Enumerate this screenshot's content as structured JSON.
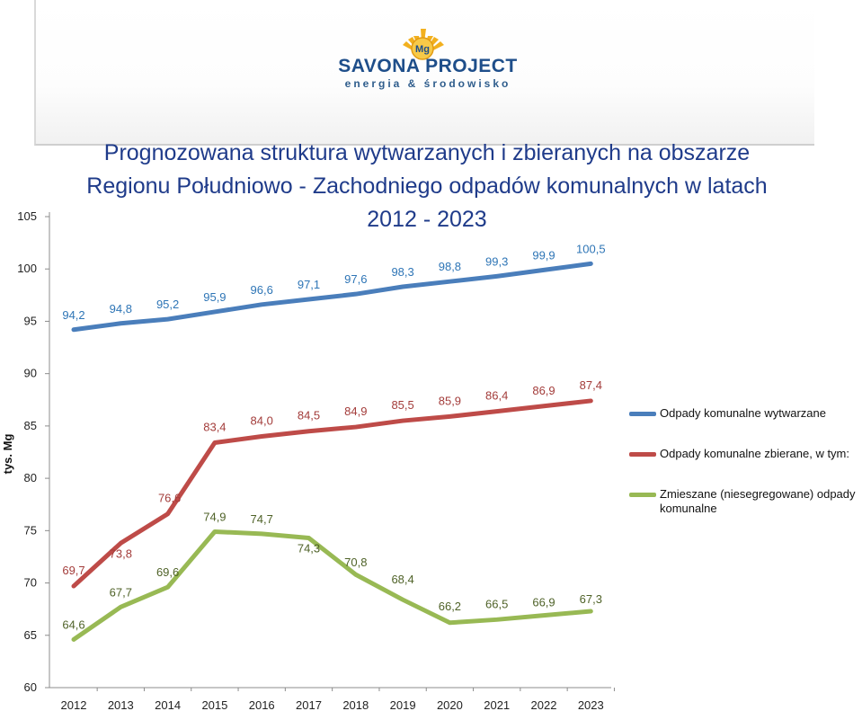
{
  "logo": {
    "brand": "SAVONA PROJECT",
    "tagline": "energia & środowisko",
    "mark_text": "Mg"
  },
  "chart_data": {
    "type": "line",
    "title": "Prognozowana struktura wytwarzanych i zbieranych na obszarze Regionu Południowo - Zachodniego odpadów komunalnych w latach 2012 - 2023",
    "title_lines": [
      "Prognozowana struktura wytwarzanych i zbieranych na obszarze",
      "Regionu Południowo - Zachodniego odpadów komunalnych w latach",
      "2012 - 2023"
    ],
    "xlabel": "",
    "ylabel": "tys. Mg",
    "categories": [
      "2012",
      "2013",
      "2014",
      "2015",
      "2016",
      "2017",
      "2018",
      "2019",
      "2020",
      "2021",
      "2022",
      "2023"
    ],
    "ylim": [
      60,
      105
    ],
    "yticks": [
      60,
      65,
      70,
      75,
      80,
      85,
      90,
      95,
      100,
      105
    ],
    "grid": false,
    "legend": "right",
    "series": [
      {
        "name": "Odpady komunalne wytwarzane",
        "color": "#4a7ebb",
        "label_color": "#2e75b6",
        "values": [
          94.2,
          94.8,
          95.2,
          95.9,
          96.6,
          97.1,
          97.6,
          98.3,
          98.8,
          99.3,
          99.9,
          100.5
        ],
        "labels": [
          "94,2",
          "94,8",
          "95,2",
          "95,9",
          "96,6",
          "97,1",
          "97,6",
          "98,3",
          "98,8",
          "99,3",
          "99,9",
          "100,5"
        ]
      },
      {
        "name": "Odpady komunalne zbierane, w tym:",
        "color": "#be4b48",
        "label_color": "#a33c3a",
        "values": [
          69.7,
          73.8,
          76.6,
          83.4,
          84.0,
          84.5,
          84.9,
          85.5,
          85.9,
          86.4,
          86.9,
          87.4
        ],
        "labels": [
          "69,7",
          "73,8",
          "76,6",
          "83,4",
          "84,0",
          "84,5",
          "84,9",
          "85,5",
          "85,9",
          "86,4",
          "86,9",
          "87,4"
        ]
      },
      {
        "name": "Zmieszane (niesegregowane) odpady komunalne",
        "color": "#98b954",
        "label_color": "#4f6228",
        "values": [
          64.6,
          67.7,
          69.6,
          74.9,
          74.7,
          74.3,
          70.8,
          68.4,
          66.2,
          66.5,
          66.9,
          67.3
        ],
        "labels": [
          "64,6",
          "67,7",
          "69,6",
          "74,9",
          "74,7",
          "74,3",
          "70,8",
          "68,4",
          "66,2",
          "66,5",
          "66,9",
          "67,3"
        ]
      }
    ]
  }
}
